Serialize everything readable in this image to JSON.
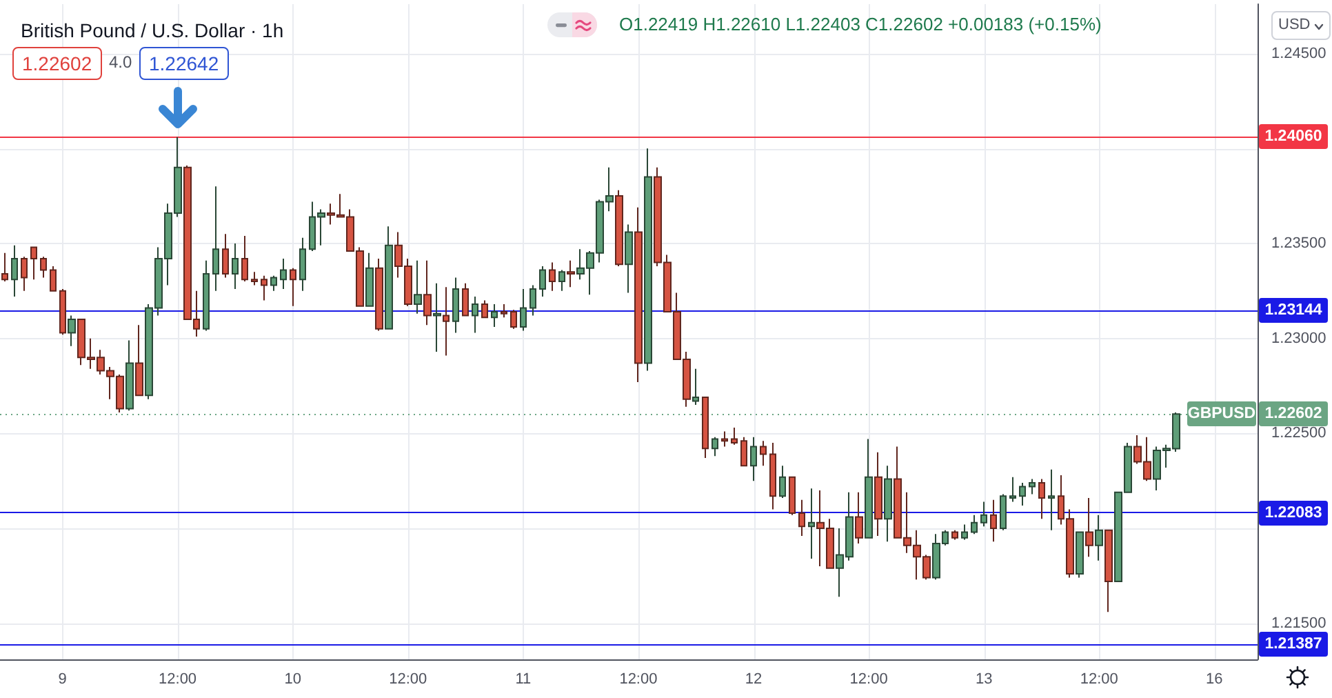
{
  "chart_data": {
    "type": "candlestick",
    "title": "British Pound / U.S. Dollar · 1h",
    "categories": [
      null,
      null,
      null,
      null,
      null,
      null,
      "9",
      null,
      null,
      null,
      null,
      null,
      null,
      null,
      null,
      null,
      null,
      null,
      "12:00",
      null,
      null,
      null,
      null,
      null,
      null,
      null,
      null,
      null,
      null,
      null,
      "10",
      null,
      null,
      null,
      null,
      null,
      null,
      null,
      null,
      null,
      null,
      null,
      "12:00",
      null,
      null,
      null,
      null,
      null,
      null,
      null,
      null,
      null,
      null,
      null,
      "11",
      null,
      null,
      null,
      null,
      null,
      null,
      null,
      null,
      null,
      null,
      null,
      "12:00",
      null,
      null,
      null,
      null,
      null,
      null,
      null,
      null,
      null,
      null,
      null,
      "12",
      null,
      null,
      null,
      null,
      null,
      null,
      null,
      null,
      null,
      null,
      null,
      "12:00",
      null,
      null,
      null,
      null,
      null,
      null,
      null,
      null,
      null,
      null,
      null,
      "13",
      null,
      null,
      null,
      null,
      null,
      null,
      null,
      null,
      null,
      null,
      null,
      "12:00",
      null,
      null,
      null,
      null,
      null,
      null,
      null,
      null,
      null,
      null,
      null,
      "16",
      null,
      null,
      null,
      null
    ],
    "ohlc": [
      [
        1.2334,
        1.2345,
        1.233,
        1.2331
      ],
      [
        1.2331,
        1.2349,
        1.2322,
        1.2342
      ],
      [
        1.2342,
        1.2343,
        1.2325,
        1.2332
      ],
      [
        1.2348,
        1.2348,
        1.2331,
        1.2342
      ],
      [
        1.2342,
        1.2343,
        1.2332,
        1.2336
      ],
      [
        1.2336,
        1.2338,
        1.2325,
        1.2325
      ],
      [
        1.2325,
        1.2326,
        1.2302,
        1.2303
      ],
      [
        1.2303,
        1.2312,
        1.2296,
        1.231
      ],
      [
        1.231,
        1.231,
        1.2286,
        1.229
      ],
      [
        1.229,
        1.23,
        1.2284,
        1.2289
      ],
      [
        1.229,
        1.2294,
        1.2281,
        1.2283
      ],
      [
        1.2283,
        1.2285,
        1.2268,
        1.228
      ],
      [
        1.228,
        1.2281,
        1.2261,
        1.2263
      ],
      [
        1.2263,
        1.2299,
        1.2262,
        1.2287
      ],
      [
        1.2287,
        1.2307,
        1.227,
        1.227
      ],
      [
        1.227,
        1.2318,
        1.2268,
        1.2316
      ],
      [
        1.2316,
        1.2348,
        1.2312,
        1.2342
      ],
      [
        1.2342,
        1.2371,
        1.2328,
        1.2366
      ],
      [
        1.2366,
        1.2406,
        1.2364,
        1.239
      ],
      [
        1.239,
        1.2391,
        1.231,
        1.231
      ],
      [
        1.231,
        1.2325,
        1.2301,
        1.2305
      ],
      [
        1.2305,
        1.2341,
        1.2304,
        1.2334
      ],
      [
        1.2334,
        1.238,
        1.2325,
        1.2347
      ],
      [
        1.2347,
        1.2355,
        1.2332,
        1.2334
      ],
      [
        1.2334,
        1.235,
        1.2326,
        1.2342
      ],
      [
        1.2342,
        1.2354,
        1.233,
        1.2331
      ],
      [
        1.2331,
        1.2335,
        1.2328,
        1.233
      ],
      [
        1.2331,
        1.2333,
        1.232,
        1.2328
      ],
      [
        1.2328,
        1.2333,
        1.2325,
        1.2332
      ],
      [
        1.2331,
        1.2342,
        1.2326,
        1.2336
      ],
      [
        1.2336,
        1.2337,
        1.2317,
        1.2331
      ],
      [
        1.2331,
        1.2353,
        1.2325,
        1.2347
      ],
      [
        1.2347,
        1.2372,
        1.2346,
        1.2364
      ],
      [
        1.2364,
        1.2368,
        1.2349,
        1.2366
      ],
      [
        1.2366,
        1.2371,
        1.236,
        1.2365
      ],
      [
        1.2365,
        1.2376,
        1.2364,
        1.2364
      ],
      [
        1.2364,
        1.2368,
        1.2346,
        1.2346
      ],
      [
        1.2346,
        1.2348,
        1.2317,
        1.2317
      ],
      [
        1.2317,
        1.2345,
        1.2317,
        1.2337
      ],
      [
        1.2337,
        1.2342,
        1.2304,
        1.2305
      ],
      [
        1.2305,
        1.2359,
        1.2305,
        1.2349
      ],
      [
        1.2349,
        1.2356,
        1.2332,
        1.2338
      ],
      [
        1.2338,
        1.2342,
        1.2317,
        1.2318
      ],
      [
        1.2318,
        1.2341,
        1.2313,
        1.2323
      ],
      [
        1.2323,
        1.2341,
        1.2307,
        1.2312
      ],
      [
        1.2312,
        1.2329,
        1.2293,
        1.2313
      ],
      [
        1.2312,
        1.2327,
        1.2291,
        1.2309
      ],
      [
        1.2309,
        1.2332,
        1.2303,
        1.2326
      ],
      [
        1.2326,
        1.2329,
        1.2312,
        1.2312
      ],
      [
        1.2312,
        1.2322,
        1.2303,
        1.2318
      ],
      [
        1.2318,
        1.232,
        1.2311,
        1.2311
      ],
      [
        1.2311,
        1.2318,
        1.2306,
        1.2314
      ],
      [
        1.2314,
        1.2318,
        1.2311,
        1.2313
      ],
      [
        1.2314,
        1.2315,
        1.2305,
        1.2306
      ],
      [
        1.2306,
        1.2326,
        1.2304,
        1.2316
      ],
      [
        1.2316,
        1.2328,
        1.2312,
        1.2326
      ],
      [
        1.2326,
        1.2338,
        1.2322,
        1.2336
      ],
      [
        1.2336,
        1.234,
        1.2325,
        1.233
      ],
      [
        1.233,
        1.2336,
        1.2325,
        1.2335
      ],
      [
        1.2335,
        1.2341,
        1.2327,
        1.2334
      ],
      [
        1.2334,
        1.2347,
        1.2331,
        1.2337
      ],
      [
        1.2337,
        1.2346,
        1.2323,
        1.2345
      ],
      [
        1.2345,
        1.2373,
        1.234,
        1.2372
      ],
      [
        1.2372,
        1.239,
        1.2367,
        1.2375
      ],
      [
        1.2375,
        1.2378,
        1.2338,
        1.2339
      ],
      [
        1.2339,
        1.236,
        1.2324,
        1.2356
      ],
      [
        1.2356,
        1.2369,
        1.2277,
        1.2287
      ],
      [
        1.2287,
        1.24,
        1.2283,
        1.2385
      ],
      [
        1.2385,
        1.239,
        1.2338,
        1.234
      ],
      [
        1.234,
        1.2344,
        1.2314,
        1.2314
      ],
      [
        1.2314,
        1.2324,
        1.2289,
        1.2289
      ],
      [
        1.2289,
        1.2293,
        1.2264,
        1.2268
      ],
      [
        1.2267,
        1.2284,
        1.2265,
        1.2269
      ],
      [
        1.2269,
        1.2269,
        1.2237,
        1.2242
      ],
      [
        1.2242,
        1.2248,
        1.2238,
        1.2247
      ],
      [
        1.2247,
        1.2251,
        1.2243,
        1.2246
      ],
      [
        1.2247,
        1.2253,
        1.2244,
        1.2245
      ],
      [
        1.2246,
        1.2248,
        1.2233,
        1.2233
      ],
      [
        1.2233,
        1.2248,
        1.2225,
        1.2243
      ],
      [
        1.2243,
        1.2246,
        1.2233,
        1.2239
      ],
      [
        1.2239,
        1.2245,
        1.221,
        1.2217
      ],
      [
        1.2217,
        1.2233,
        1.2216,
        1.2227
      ],
      [
        1.2227,
        1.2227,
        1.2207,
        1.2208
      ],
      [
        1.2208,
        1.2215,
        1.2196,
        1.2201
      ],
      [
        1.2201,
        1.2221,
        1.2184,
        1.2203
      ],
      [
        1.2203,
        1.222,
        1.218,
        1.22
      ],
      [
        1.22,
        1.2205,
        1.2179,
        1.2179
      ],
      [
        1.2179,
        1.22,
        1.2164,
        1.2186
      ],
      [
        1.2185,
        1.2219,
        1.2183,
        1.2206
      ],
      [
        1.2206,
        1.2219,
        1.2192,
        1.2195
      ],
      [
        1.2195,
        1.2247,
        1.2195,
        1.2227
      ],
      [
        1.2227,
        1.224,
        1.2196,
        1.2205
      ],
      [
        1.2205,
        1.2233,
        1.2193,
        1.2226
      ],
      [
        1.2226,
        1.2243,
        1.2195,
        1.2195
      ],
      [
        1.2195,
        1.2219,
        1.2187,
        1.2191
      ],
      [
        1.2191,
        1.2199,
        1.2173,
        1.2185
      ],
      [
        1.2185,
        1.2186,
        1.2173,
        1.2174
      ],
      [
        1.2174,
        1.2197,
        1.2173,
        1.2192
      ],
      [
        1.2192,
        1.2199,
        1.2191,
        1.2198
      ],
      [
        1.2198,
        1.2199,
        1.2194,
        1.2195
      ],
      [
        1.2195,
        1.2202,
        1.2194,
        1.2198
      ],
      [
        1.2198,
        1.2207,
        1.2197,
        1.2203
      ],
      [
        1.2203,
        1.2214,
        1.2201,
        1.2207
      ],
      [
        1.2207,
        1.2215,
        1.2193,
        1.22
      ],
      [
        1.22,
        1.2218,
        1.2199,
        1.2217
      ],
      [
        1.2216,
        1.2227,
        1.2214,
        1.2217
      ],
      [
        1.2217,
        1.2224,
        1.2212,
        1.2222
      ],
      [
        1.2222,
        1.2226,
        1.2218,
        1.2224
      ],
      [
        1.2224,
        1.2226,
        1.2205,
        1.2216
      ],
      [
        1.2216,
        1.2231,
        1.2199,
        1.2217
      ],
      [
        1.2217,
        1.2228,
        1.2202,
        1.2205
      ],
      [
        1.2205,
        1.221,
        1.2174,
        1.2176
      ],
      [
        1.2176,
        1.2198,
        1.2174,
        1.2198
      ],
      [
        1.2198,
        1.2216,
        1.2185,
        1.2191
      ],
      [
        1.2191,
        1.2207,
        1.2183,
        1.2199
      ],
      [
        1.2199,
        1.2199,
        1.2156,
        1.2172
      ],
      [
        1.2172,
        1.2219,
        1.2172,
        1.2219
      ],
      [
        1.2219,
        1.2245,
        1.2219,
        1.2243
      ],
      [
        1.2243,
        1.2249,
        1.2234,
        1.2235
      ],
      [
        1.2235,
        1.2248,
        1.2225,
        1.2226
      ],
      [
        1.2226,
        1.2243,
        1.222,
        1.2241
      ],
      [
        1.2241,
        1.2244,
        1.2232,
        1.2242
      ],
      [
        1.22419,
        1.2261,
        1.22403,
        1.22602
      ],
      null,
      null,
      null,
      null,
      null,
      null,
      null,
      null
    ],
    "colors": [
      "#d65442",
      "#5e9e78",
      "#d65442",
      "#d65442",
      "#d65442",
      "#d65442",
      "#d65442",
      "#5e9e78",
      "#d65442",
      "#d65442",
      "#d65442",
      "#d65442",
      "#d65442",
      "#5e9e78",
      "#d65442",
      "#5e9e78",
      "#5e9e78",
      "#5e9e78",
      "#5e9e78",
      "#d65442",
      "#d65442",
      "#5e9e78",
      "#5e9e78",
      "#d65442",
      "#5e9e78",
      "#d65442",
      "#d65442",
      "#d65442",
      "#5e9e78",
      "#5e9e78",
      "#d65442",
      "#5e9e78",
      "#5e9e78",
      "#5e9e78",
      "#d65442",
      "#d65442",
      "#d65442",
      "#d65442",
      "#5e9e78",
      "#d65442",
      "#5e9e78",
      "#d65442",
      "#d65442",
      "#5e9e78",
      "#d65442",
      "#5e9e78",
      "#d65442",
      "#5e9e78",
      "#d65442",
      "#5e9e78",
      "#d65442",
      "#5e9e78",
      "#d65442",
      "#d65442",
      "#5e9e78",
      "#5e9e78",
      "#5e9e78",
      "#d65442",
      "#5e9e78",
      "#d65442",
      "#5e9e78",
      "#5e9e78",
      "#5e9e78",
      "#5e9e78",
      "#d65442",
      "#5e9e78",
      "#d65442",
      "#5e9e78",
      "#d65442",
      "#d65442",
      "#d65442",
      "#d65442",
      "#5e9e78",
      "#d65442",
      "#5e9e78",
      "#d65442",
      "#d65442",
      "#d65442",
      "#5e9e78",
      "#d65442",
      "#d65442",
      "#5e9e78",
      "#d65442",
      "#d65442",
      "#5e9e78",
      "#d65442",
      "#d65442",
      "#5e9e78",
      "#5e9e78",
      "#d65442",
      "#5e9e78",
      "#d65442",
      "#5e9e78",
      "#d65442",
      "#d65442",
      "#d65442",
      "#d65442",
      "#5e9e78",
      "#5e9e78",
      "#d65442",
      "#5e9e78",
      "#5e9e78",
      "#5e9e78",
      "#d65442",
      "#5e9e78",
      "#5e9e78",
      "#5e9e78",
      "#5e9e78",
      "#d65442",
      "#5e9e78",
      "#d65442",
      "#d65442",
      "#5e9e78",
      "#d65442",
      "#5e9e78",
      "#d65442",
      "#5e9e78",
      "#5e9e78",
      "#d65442",
      "#d65442",
      "#5e9e78",
      "#5e9e78",
      "#5e9e78",
      null,
      null,
      null,
      null,
      null,
      null,
      null,
      null
    ],
    "ylim": [
      1.2131,
      1.2476
    ],
    "yticks": [
      {
        "value": 1.215,
        "label": "1.21500"
      },
      {
        "value": 1.22,
        "label": null
      },
      {
        "value": 1.225,
        "label": "1.22500"
      },
      {
        "value": 1.23,
        "label": "1.23000"
      },
      {
        "value": 1.235,
        "label": "1.23500"
      },
      {
        "value": 1.24,
        "label": null
      },
      {
        "value": 1.245,
        "label": "1.24500"
      }
    ],
    "grid": true,
    "ref_lines": [
      {
        "axis": "y",
        "value": 1.2406,
        "label": "1.24060",
        "color": "#f23645"
      },
      {
        "axis": "y",
        "value": 1.23144,
        "label": "1.23144",
        "color": "#1a1ae6"
      },
      {
        "axis": "y",
        "value": 1.22083,
        "label": "1.22083",
        "color": "#1a1ae6"
      },
      {
        "axis": "y",
        "value": 1.21387,
        "label": "1.21387",
        "color": "#1a1ae6"
      },
      {
        "axis": "y",
        "value": 1.22602,
        "label": "1.22602",
        "color": "#6ba583",
        "line_style": "dotted"
      }
    ],
    "annotations": [
      "O1.22419 H1.22610 L1.22403 C1.22602 +0.00183 (+0.15%)",
      "1.22602",
      "4.0",
      "1.22642",
      "USD",
      "GBPUSD"
    ]
  }
}
